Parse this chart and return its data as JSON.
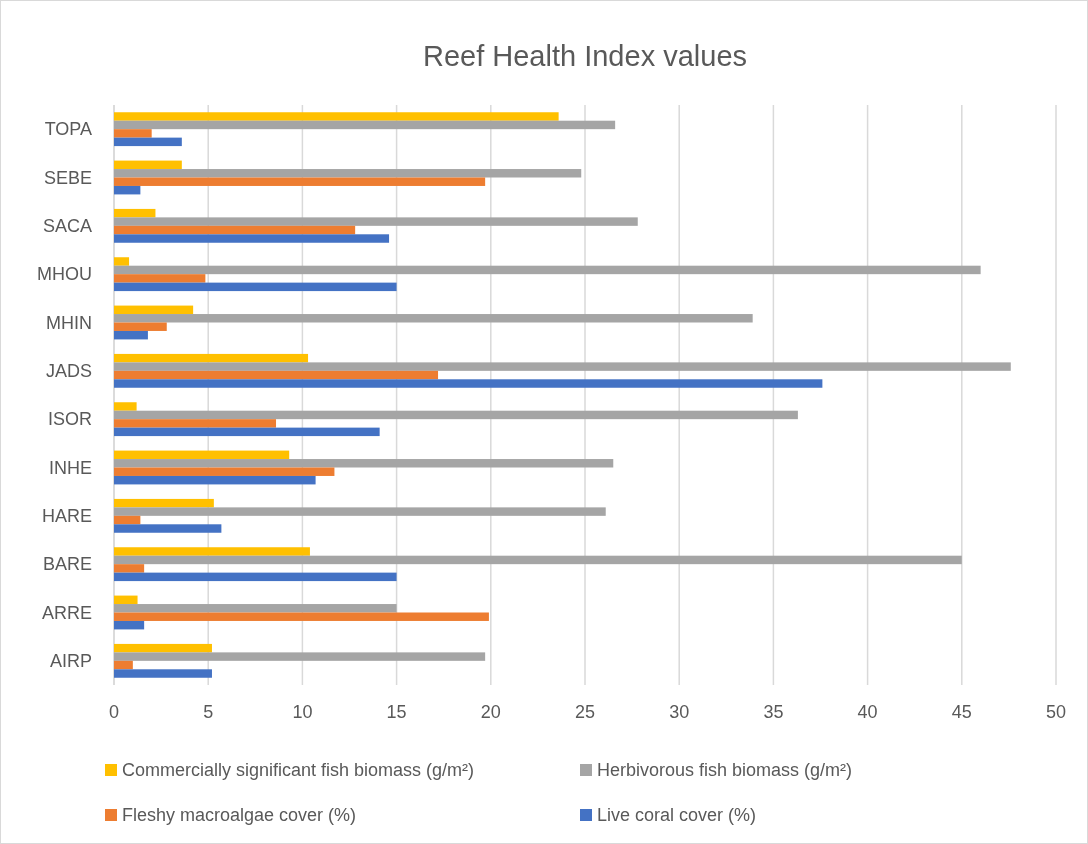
{
  "chart_data": {
    "type": "bar",
    "orientation": "horizontal",
    "title": "Reef Health Index values",
    "categories": [
      "TOPA",
      "SEBE",
      "SACA",
      "MHOU",
      "MHIN",
      "JADS",
      "ISOR",
      "INHE",
      "HARE",
      "BARE",
      "ARRE",
      "AIRP"
    ],
    "series": [
      {
        "name": "Commercially significant fish biomass (g/m²)",
        "color": "#ffc000",
        "values": [
          23.6,
          3.6,
          2.2,
          0.8,
          4.2,
          10.3,
          1.2,
          9.3,
          5.3,
          10.4,
          1.25,
          5.2
        ]
      },
      {
        "name": "Herbivorous fish biomass (g/m²)",
        "color": "#a5a5a5",
        "values": [
          26.6,
          24.8,
          27.8,
          46.0,
          33.9,
          47.6,
          36.3,
          26.5,
          26.1,
          45.0,
          15.0,
          19.7
        ]
      },
      {
        "name": "Fleshy macroalgae cover (%)",
        "color": "#ed7d31",
        "values": [
          2.0,
          19.7,
          12.8,
          4.85,
          2.8,
          17.2,
          8.6,
          11.7,
          1.4,
          1.6,
          19.9,
          1.0
        ]
      },
      {
        "name": "Live coral cover (%)",
        "color": "#4472c4",
        "values": [
          3.6,
          1.4,
          14.6,
          15.0,
          1.8,
          37.6,
          14.1,
          10.7,
          5.7,
          15.0,
          1.6,
          5.2
        ]
      }
    ],
    "xlim": [
      0,
      50
    ],
    "xticks": [
      0,
      5,
      10,
      15,
      20,
      25,
      30,
      35,
      40,
      45,
      50
    ],
    "grid": "x",
    "legend": "bottom"
  }
}
